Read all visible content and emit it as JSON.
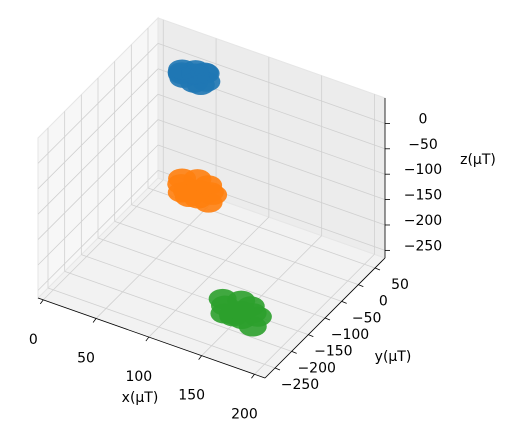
{
  "chart_data": {
    "type": "scatter3d",
    "xlabel": "x(μT)",
    "ylabel": "y(μT)",
    "zlabel": "z(μT)",
    "xlim": [
      -5,
      210
    ],
    "ylim": [
      -280,
      80
    ],
    "zlim": [
      -265,
      50
    ],
    "xticks": [
      0,
      50,
      100,
      150,
      200
    ],
    "yticks": [
      {
        "value": -250,
        "label": "−250"
      },
      {
        "value": -200,
        "label": "−200"
      },
      {
        "value": -150,
        "label": "−150"
      },
      {
        "value": -100,
        "label": "−100"
      },
      {
        "value": -50,
        "label": "−50"
      },
      0,
      50
    ],
    "zticks": [
      {
        "value": -250,
        "label": "−250"
      },
      {
        "value": -200,
        "label": "−200"
      },
      {
        "value": -150,
        "label": "−150"
      },
      {
        "value": -100,
        "label": "−100"
      },
      {
        "value": -50,
        "label": "−50"
      },
      0
    ],
    "grid": true,
    "series": [
      {
        "color": "#1f77b4",
        "x": [
          30,
          35,
          40,
          45,
          50,
          55,
          38,
          48,
          33,
          52,
          42,
          44
        ],
        "y": [
          40,
          25,
          50,
          30,
          45,
          35,
          20,
          55,
          32,
          28,
          42,
          38
        ],
        "z": [
          -5,
          5,
          0,
          -8,
          6,
          -2,
          3,
          -4,
          8,
          -6,
          0,
          2
        ]
      },
      {
        "color": "#ff7f0e",
        "x": [
          62,
          68,
          75,
          82,
          90,
          95,
          70,
          86,
          78,
          65,
          92,
          80
        ],
        "y": [
          -60,
          -80,
          -55,
          -75,
          -65,
          -85,
          -70,
          -58,
          -90,
          -72,
          -62,
          -68
        ],
        "z": [
          -125,
          -135,
          -120,
          -140,
          -128,
          -132,
          -138,
          -122,
          -130,
          -126,
          -134,
          -129
        ]
      },
      {
        "color": "#2ca02c",
        "x": [
          132,
          140,
          148,
          155,
          162,
          170,
          145,
          158,
          150,
          138,
          166,
          152
        ],
        "y": [
          -160,
          -180,
          -155,
          -175,
          -165,
          -190,
          -170,
          -158,
          -185,
          -172,
          -162,
          -168
        ],
        "z": [
          -245,
          -255,
          -240,
          -258,
          -248,
          -252,
          -260,
          -242,
          -250,
          -246,
          -254,
          -249
        ]
      }
    ]
  }
}
